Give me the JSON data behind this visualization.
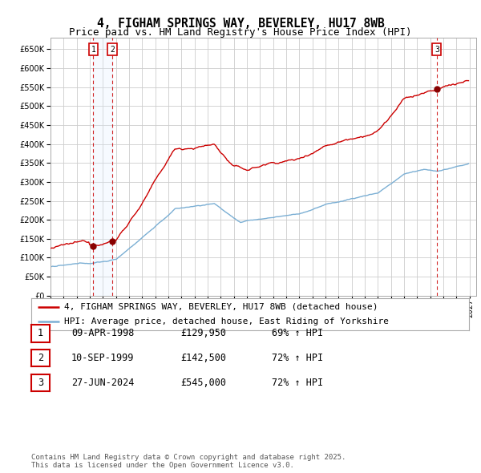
{
  "title_line1": "4, FIGHAM SPRINGS WAY, BEVERLEY, HU17 8WB",
  "title_line2": "Price paid vs. HM Land Registry's House Price Index (HPI)",
  "ylim": [
    0,
    680000
  ],
  "yticks": [
    0,
    50000,
    100000,
    150000,
    200000,
    250000,
    300000,
    350000,
    400000,
    450000,
    500000,
    550000,
    600000,
    650000
  ],
  "xlim_start": 1995.0,
  "xlim_end": 2027.5,
  "background_color": "#ffffff",
  "grid_color": "#cccccc",
  "red_line_color": "#cc0000",
  "blue_line_color": "#7bafd4",
  "sale_shade_color": "#ddeeff",
  "legend_label_red": "4, FIGHAM SPRINGS WAY, BEVERLEY, HU17 8WB (detached house)",
  "legend_label_blue": "HPI: Average price, detached house, East Riding of Yorkshire",
  "sale_markers": [
    {
      "year": 1998.27,
      "price": 129950,
      "label": "1"
    },
    {
      "year": 1999.71,
      "price": 142500,
      "label": "2"
    },
    {
      "year": 2024.49,
      "price": 545000,
      "label": "3"
    }
  ],
  "table_rows": [
    {
      "num": "1",
      "date": "09-APR-1998",
      "price": "£129,950",
      "hpi": "69% ↑ HPI"
    },
    {
      "num": "2",
      "date": "10-SEP-1999",
      "price": "£142,500",
      "hpi": "72% ↑ HPI"
    },
    {
      "num": "3",
      "date": "27-JUN-2024",
      "price": "£545,000",
      "hpi": "72% ↑ HPI"
    }
  ],
  "footer": "Contains HM Land Registry data © Crown copyright and database right 2025.\nThis data is licensed under the Open Government Licence v3.0.",
  "title_fontsize": 10.5,
  "subtitle_fontsize": 9,
  "axis_fontsize": 7,
  "legend_fontsize": 8,
  "table_fontsize": 8.5,
  "footer_fontsize": 6.5
}
